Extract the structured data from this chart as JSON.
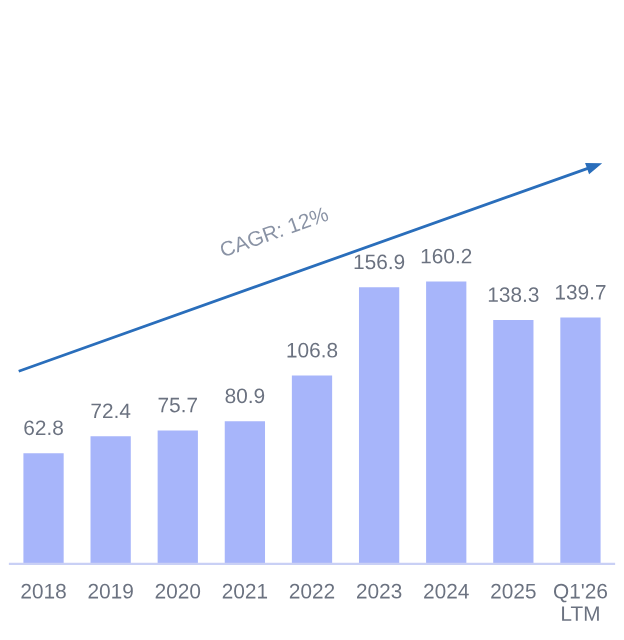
{
  "chart_data": {
    "type": "bar",
    "categories": [
      "2018",
      "2019",
      "2020",
      "2021",
      "2022",
      "2023",
      "2024",
      "2025",
      "Q1'26\nLTM"
    ],
    "values": [
      62.8,
      72.4,
      75.7,
      80.9,
      106.8,
      156.9,
      160.2,
      138.3,
      139.7
    ],
    "color": "#a7b5fa",
    "data_labels": true,
    "grid": false,
    "annotations": [
      "CAGR: 12%"
    ]
  }
}
